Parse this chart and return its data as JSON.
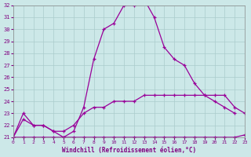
{
  "bg_color": "#cce8e8",
  "line_color": "#990099",
  "grid_color": "#aacccc",
  "xlim": [
    0,
    23
  ],
  "ylim": [
    21,
    32
  ],
  "xticks": [
    0,
    1,
    2,
    3,
    4,
    5,
    6,
    7,
    8,
    9,
    10,
    11,
    12,
    13,
    14,
    15,
    16,
    17,
    18,
    19,
    20,
    21,
    22,
    23
  ],
  "yticks": [
    21,
    22,
    23,
    24,
    25,
    26,
    27,
    28,
    29,
    30,
    31,
    32
  ],
  "xlabel": "Windchill (Refroidissement éolien,°C)",
  "temp_main_x": [
    0,
    1,
    2,
    3,
    4,
    5,
    6,
    7,
    8,
    9,
    10,
    11,
    12,
    13,
    14,
    15,
    16,
    17,
    18,
    19,
    20,
    21,
    22
  ],
  "temp_main_y": [
    21,
    23,
    22,
    22,
    21.5,
    21,
    21.5,
    23.5,
    27.5,
    30,
    30.5,
    32,
    32,
    32.5,
    31,
    28.5,
    27.5,
    27,
    25.5,
    24.5,
    24,
    23.5,
    23.0
  ],
  "temp_flat_x": [
    0,
    1,
    2,
    3,
    4,
    5,
    6,
    7,
    8,
    9,
    10,
    11,
    12,
    13,
    14,
    15,
    16,
    17,
    18,
    19,
    20,
    21,
    22,
    23
  ],
  "temp_flat_y": [
    21,
    21,
    21,
    21,
    21,
    21,
    21,
    21,
    21,
    21,
    21,
    21,
    21,
    21,
    21,
    21,
    21,
    21,
    21,
    21,
    21,
    21,
    21,
    21.2
  ],
  "temp_mid_x": [
    0,
    1,
    2,
    3,
    4,
    5,
    6,
    7,
    8,
    9,
    10,
    11,
    12,
    13,
    14,
    15,
    16,
    17,
    18,
    19,
    20,
    21,
    22,
    23
  ],
  "temp_mid_y": [
    21,
    22.5,
    22,
    22,
    21.5,
    21.5,
    22,
    23,
    23.5,
    23.5,
    24,
    24,
    24,
    24.5,
    24.5,
    24.5,
    24.5,
    24.5,
    24.5,
    24.5,
    24.5,
    24.5,
    23.5,
    23.0
  ]
}
